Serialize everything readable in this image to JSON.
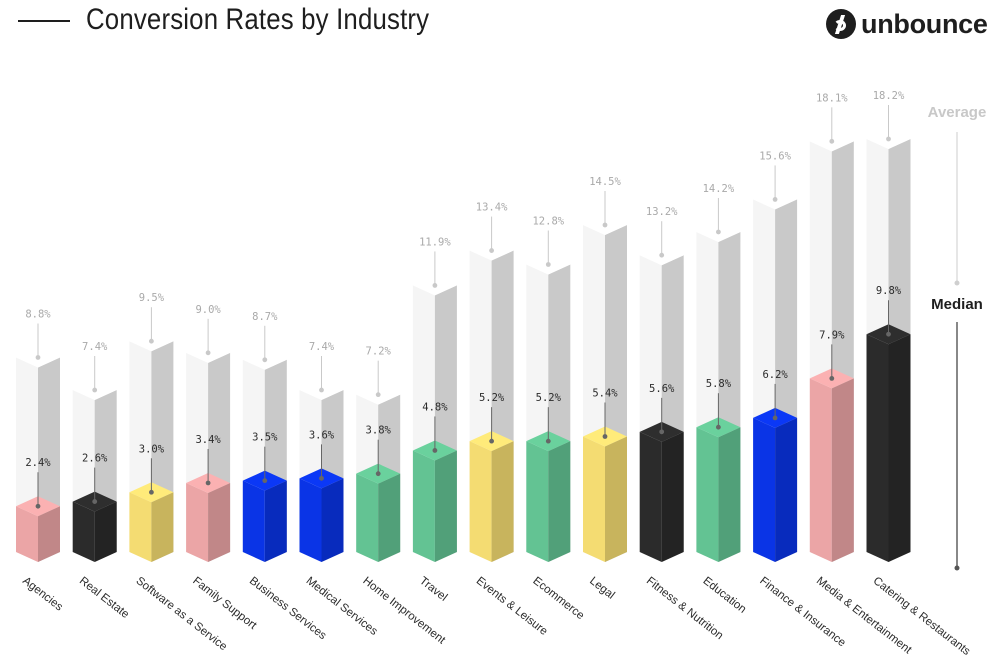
{
  "header": {
    "title": "Conversion Rates by Industry",
    "logo_text": "unbounce"
  },
  "legend": {
    "average_label": "Average",
    "median_label": "Median"
  },
  "chart_data": {
    "type": "bar",
    "title": "Conversion Rates by Industry",
    "ylim": [
      0,
      20
    ],
    "grid": false,
    "legend_placement": "right",
    "categories": [
      "Agencies",
      "Real Estate",
      "Software as a Service",
      "Family Support",
      "Business Services",
      "Medical Services",
      "Home Improvement",
      "Travel",
      "Events & Leisure",
      "Ecommerce",
      "Legal",
      "Fitness & Nutrition",
      "Education",
      "Finance & Insurance",
      "Media & Entertainment",
      "Catering & Restaurants"
    ],
    "series": [
      {
        "name": "Median",
        "values": [
          2.4,
          2.6,
          3.0,
          3.4,
          3.5,
          3.6,
          3.8,
          4.8,
          5.2,
          5.2,
          5.4,
          5.6,
          5.8,
          6.2,
          7.9,
          9.8
        ],
        "labels": [
          "2.4%",
          "2.6%",
          "3.0%",
          "3.4%",
          "3.5%",
          "3.6%",
          "3.8%",
          "4.8%",
          "5.2%",
          "5.2%",
          "5.4%",
          "5.6%",
          "5.8%",
          "6.2%",
          "7.9%",
          "9.8%"
        ],
        "colors": [
          "#eba5a6",
          "#2b2b2b",
          "#f4dc72",
          "#eba5a6",
          "#0a34e6",
          "#0a34e6",
          "#63c393",
          "#63c393",
          "#f4dc72",
          "#63c393",
          "#f4dc72",
          "#2b2b2b",
          "#63c393",
          "#0a34e6",
          "#eba5a6",
          "#2b2b2b"
        ]
      },
      {
        "name": "Average",
        "values": [
          8.8,
          7.4,
          9.5,
          9.0,
          8.7,
          7.4,
          7.2,
          11.9,
          13.4,
          12.8,
          14.5,
          13.2,
          14.2,
          15.6,
          18.1,
          18.2
        ],
        "labels": [
          "8.8%",
          "7.4%",
          "9.5%",
          "9.0%",
          "8.7%",
          "7.4%",
          "7.2%",
          "11.9%",
          "13.4%",
          "12.8%",
          "14.5%",
          "13.2%",
          "14.2%",
          "15.6%",
          "18.1%",
          "18.2%"
        ],
        "color": "#f5f5f5"
      }
    ],
    "category_icons": [
      "megaphone-icon",
      "house-icon",
      "gear-icon",
      "family-icon",
      "handshake-icon",
      "heart-pulse-icon",
      "toolbox-icon",
      "airplane-icon",
      "ticket-icon",
      "cart-icon",
      "gavel-icon",
      "dumbbell-icon",
      "book-icon",
      "dollar-icon",
      "play-icon",
      "dining-icon"
    ]
  }
}
